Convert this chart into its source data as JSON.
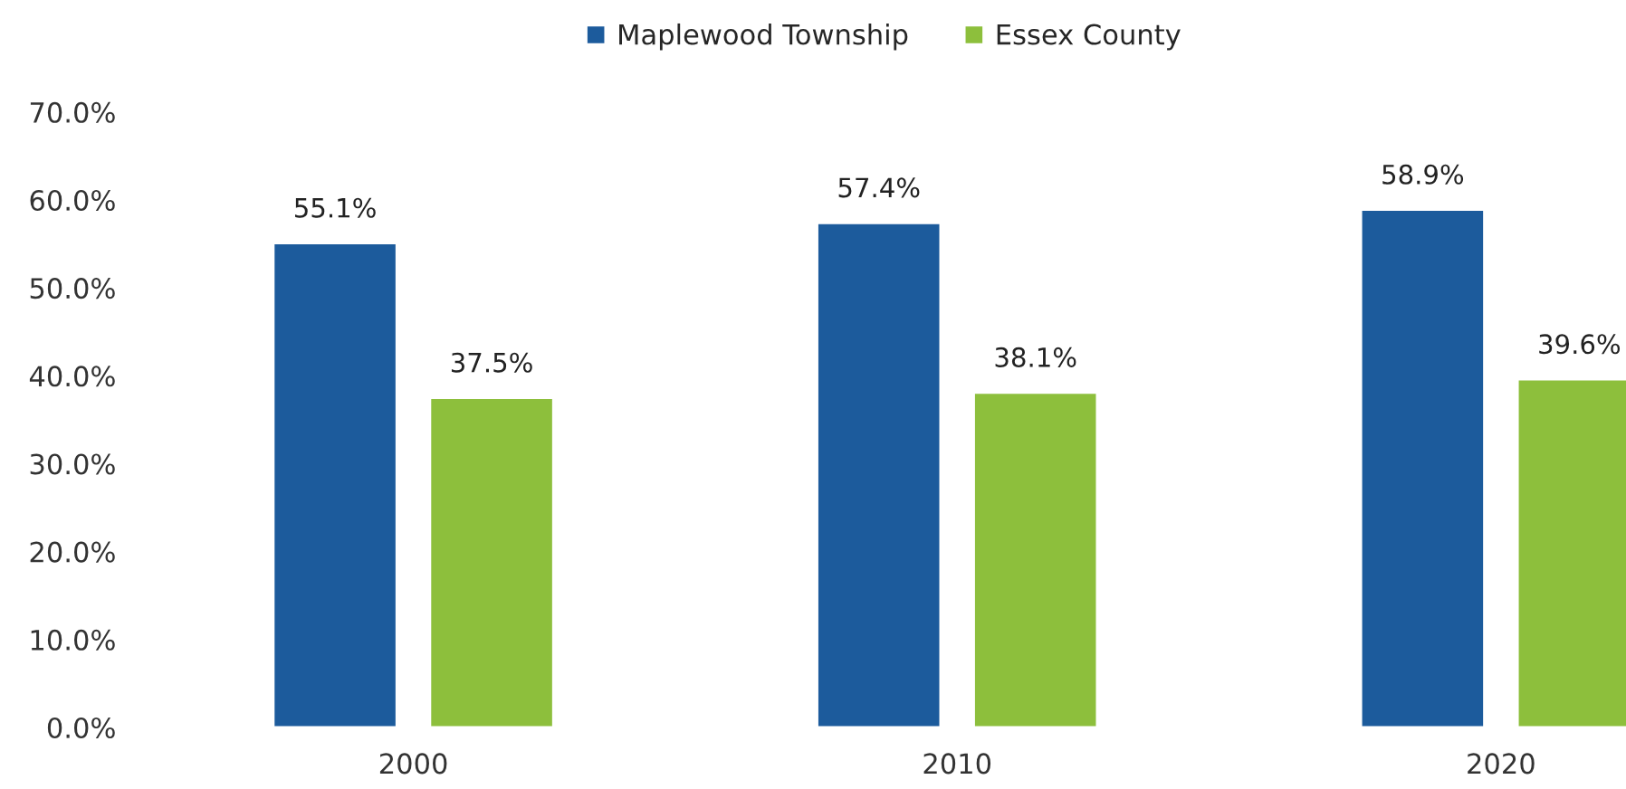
{
  "chart_data": {
    "type": "bar",
    "categories": [
      "2000",
      "2010",
      "2020"
    ],
    "series": [
      {
        "name": "Maplewood Township",
        "color": "#1c5b9c",
        "values": [
          55.1,
          57.4,
          58.9
        ],
        "value_labels": [
          "55.1%",
          "57.4%",
          "58.9%"
        ]
      },
      {
        "name": "Essex County",
        "color": "#8dbf3c",
        "values": [
          37.5,
          38.1,
          39.6
        ],
        "value_labels": [
          "37.5%",
          "38.1%",
          "39.6%"
        ]
      }
    ],
    "ylim": [
      0,
      70
    ],
    "yticks": [
      {
        "value": 0,
        "label": "0.0%"
      },
      {
        "value": 10,
        "label": "10.0%"
      },
      {
        "value": 20,
        "label": "20.0%"
      },
      {
        "value": 30,
        "label": "30.0%"
      },
      {
        "value": 40,
        "label": "40.0%"
      },
      {
        "value": 50,
        "label": "50.0%"
      },
      {
        "value": 60,
        "label": "60.0%"
      },
      {
        "value": 70,
        "label": "70.0%"
      }
    ],
    "legend": "top",
    "grid": false
  }
}
